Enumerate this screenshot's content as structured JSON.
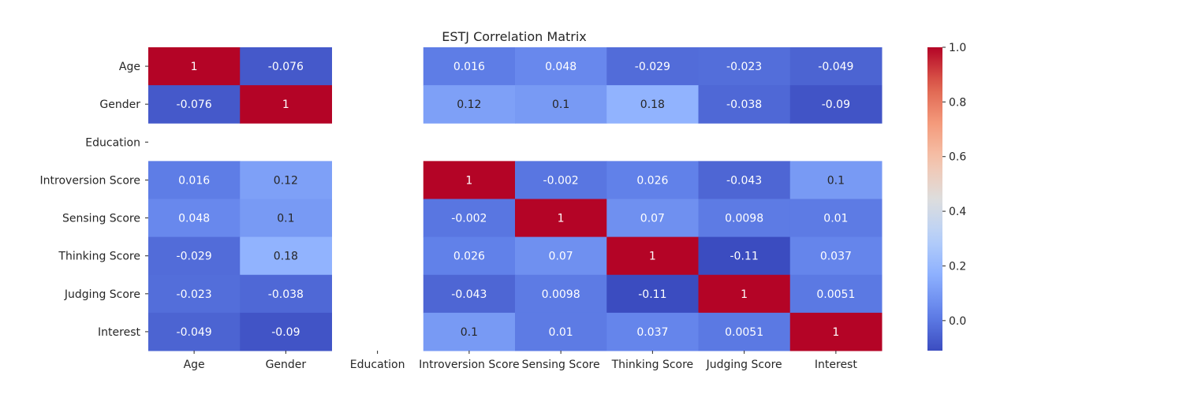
{
  "chart_data": {
    "type": "heatmap",
    "title": "ESTJ Correlation Matrix",
    "colormap": "coolwarm",
    "rows": [
      "Age",
      "Gender",
      "Education",
      "Introversion Score",
      "Sensing Score",
      "Thinking Score",
      "Judging Score",
      "Interest"
    ],
    "columns": [
      "Age",
      "Gender",
      "Education",
      "Introversion Score",
      "Sensing Score",
      "Thinking Score",
      "Judging Score",
      "Interest"
    ],
    "values": [
      [
        1,
        -0.076,
        null,
        0.016,
        0.048,
        -0.029,
        -0.023,
        -0.049
      ],
      [
        -0.076,
        1,
        null,
        0.12,
        0.1,
        0.18,
        -0.038,
        -0.09
      ],
      [
        null,
        null,
        null,
        null,
        null,
        null,
        null,
        null
      ],
      [
        0.016,
        0.12,
        null,
        1,
        -0.002,
        0.026,
        -0.043,
        0.1
      ],
      [
        0.048,
        0.1,
        null,
        -0.002,
        1,
        0.07,
        0.0098,
        0.01
      ],
      [
        -0.029,
        0.18,
        null,
        0.026,
        0.07,
        1,
        -0.11,
        0.037
      ],
      [
        -0.023,
        -0.038,
        null,
        -0.043,
        0.0098,
        -0.11,
        1,
        0.0051
      ],
      [
        -0.049,
        -0.09,
        null,
        0.1,
        0.01,
        0.037,
        0.0051,
        1
      ]
    ],
    "labels": [
      [
        "1",
        "-0.076",
        "",
        "0.016",
        "0.048",
        "-0.029",
        "-0.023",
        "-0.049"
      ],
      [
        "-0.076",
        "1",
        "",
        "0.12",
        "0.1",
        "0.18",
        "-0.038",
        "-0.09"
      ],
      [
        "",
        "",
        "",
        "",
        "",
        "",
        "",
        ""
      ],
      [
        "0.016",
        "0.12",
        "",
        "1",
        "-0.002",
        "0.026",
        "-0.043",
        "0.1"
      ],
      [
        "0.048",
        "0.1",
        "",
        "-0.002",
        "1",
        "0.07",
        "0.0098",
        "0.01"
      ],
      [
        "-0.029",
        "0.18",
        "",
        "0.026",
        "0.07",
        "1",
        "-0.11",
        "0.037"
      ],
      [
        "-0.023",
        "-0.038",
        "",
        "-0.043",
        "0.0098",
        "-0.11",
        "1",
        "0.0051"
      ],
      [
        "-0.049",
        "-0.09",
        "",
        "0.1",
        "0.01",
        "0.037",
        "0.0051",
        "1"
      ]
    ],
    "colorbar": {
      "vmin": -0.11,
      "vmax": 1,
      "ticks": [
        0.0,
        0.2,
        0.4,
        0.6,
        0.8,
        1.0
      ],
      "tick_labels": [
        "0.0",
        "0.2",
        "0.4",
        "0.6",
        "0.8",
        "1.0"
      ]
    },
    "grid": false,
    "legend": "colorbar-right"
  }
}
